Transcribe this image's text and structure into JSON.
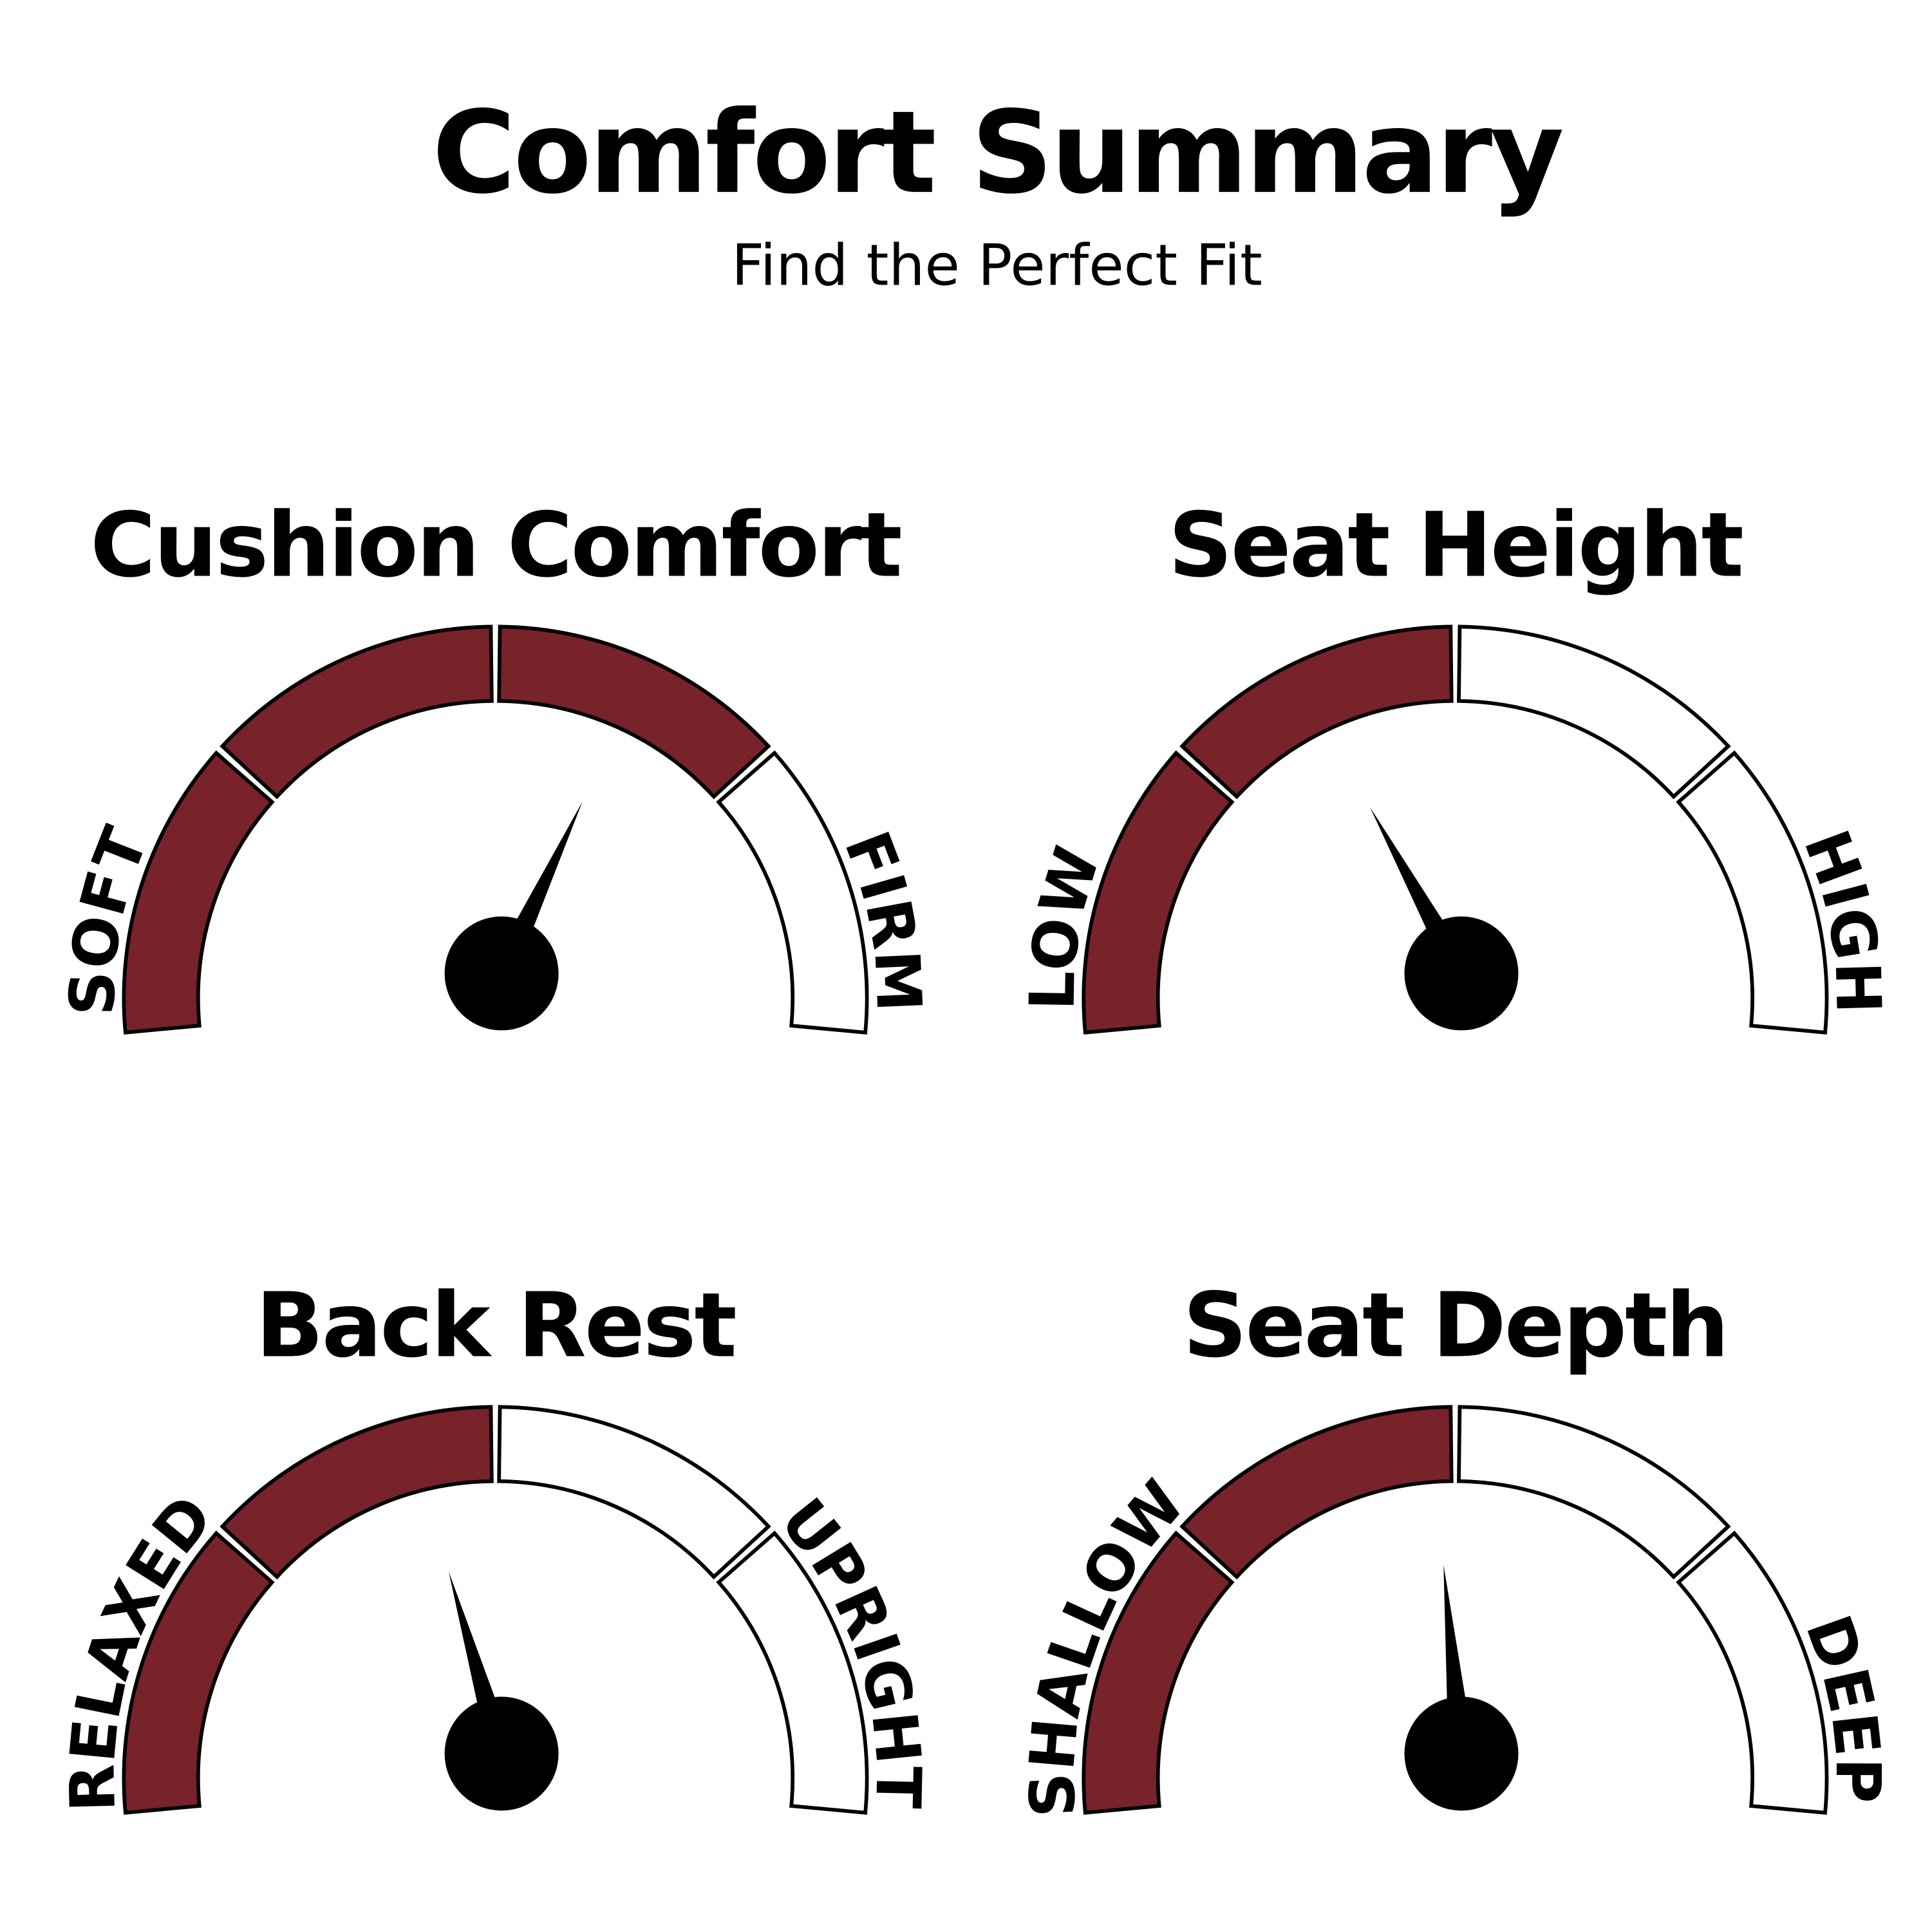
{
  "title": "Comfort Summary",
  "subtitle": "Find the Perfect Fit",
  "colors": {
    "filled": "#78222a",
    "empty": "#ffffff",
    "outline": "#000000",
    "needle": "#000000"
  },
  "gauges": [
    {
      "title": "Cushion Comfort",
      "left_label": "SOFT",
      "right_label": "FIRM",
      "segments": 4,
      "filled_segments": 3,
      "needle_value": 0.64
    },
    {
      "title": "Seat Height",
      "left_label": "LOW",
      "right_label": "HIGH",
      "segments": 4,
      "filled_segments": 2,
      "needle_value": 0.34
    },
    {
      "title": "Back Rest",
      "left_label": "RELAXED",
      "right_label": "UPRIGHT",
      "segments": 4,
      "filled_segments": 2,
      "needle_value": 0.41
    },
    {
      "title": "Seat Depth",
      "left_label": "SHALLOW",
      "right_label": "DEEP",
      "segments": 4,
      "filled_segments": 2,
      "needle_value": 0.47
    }
  ]
}
